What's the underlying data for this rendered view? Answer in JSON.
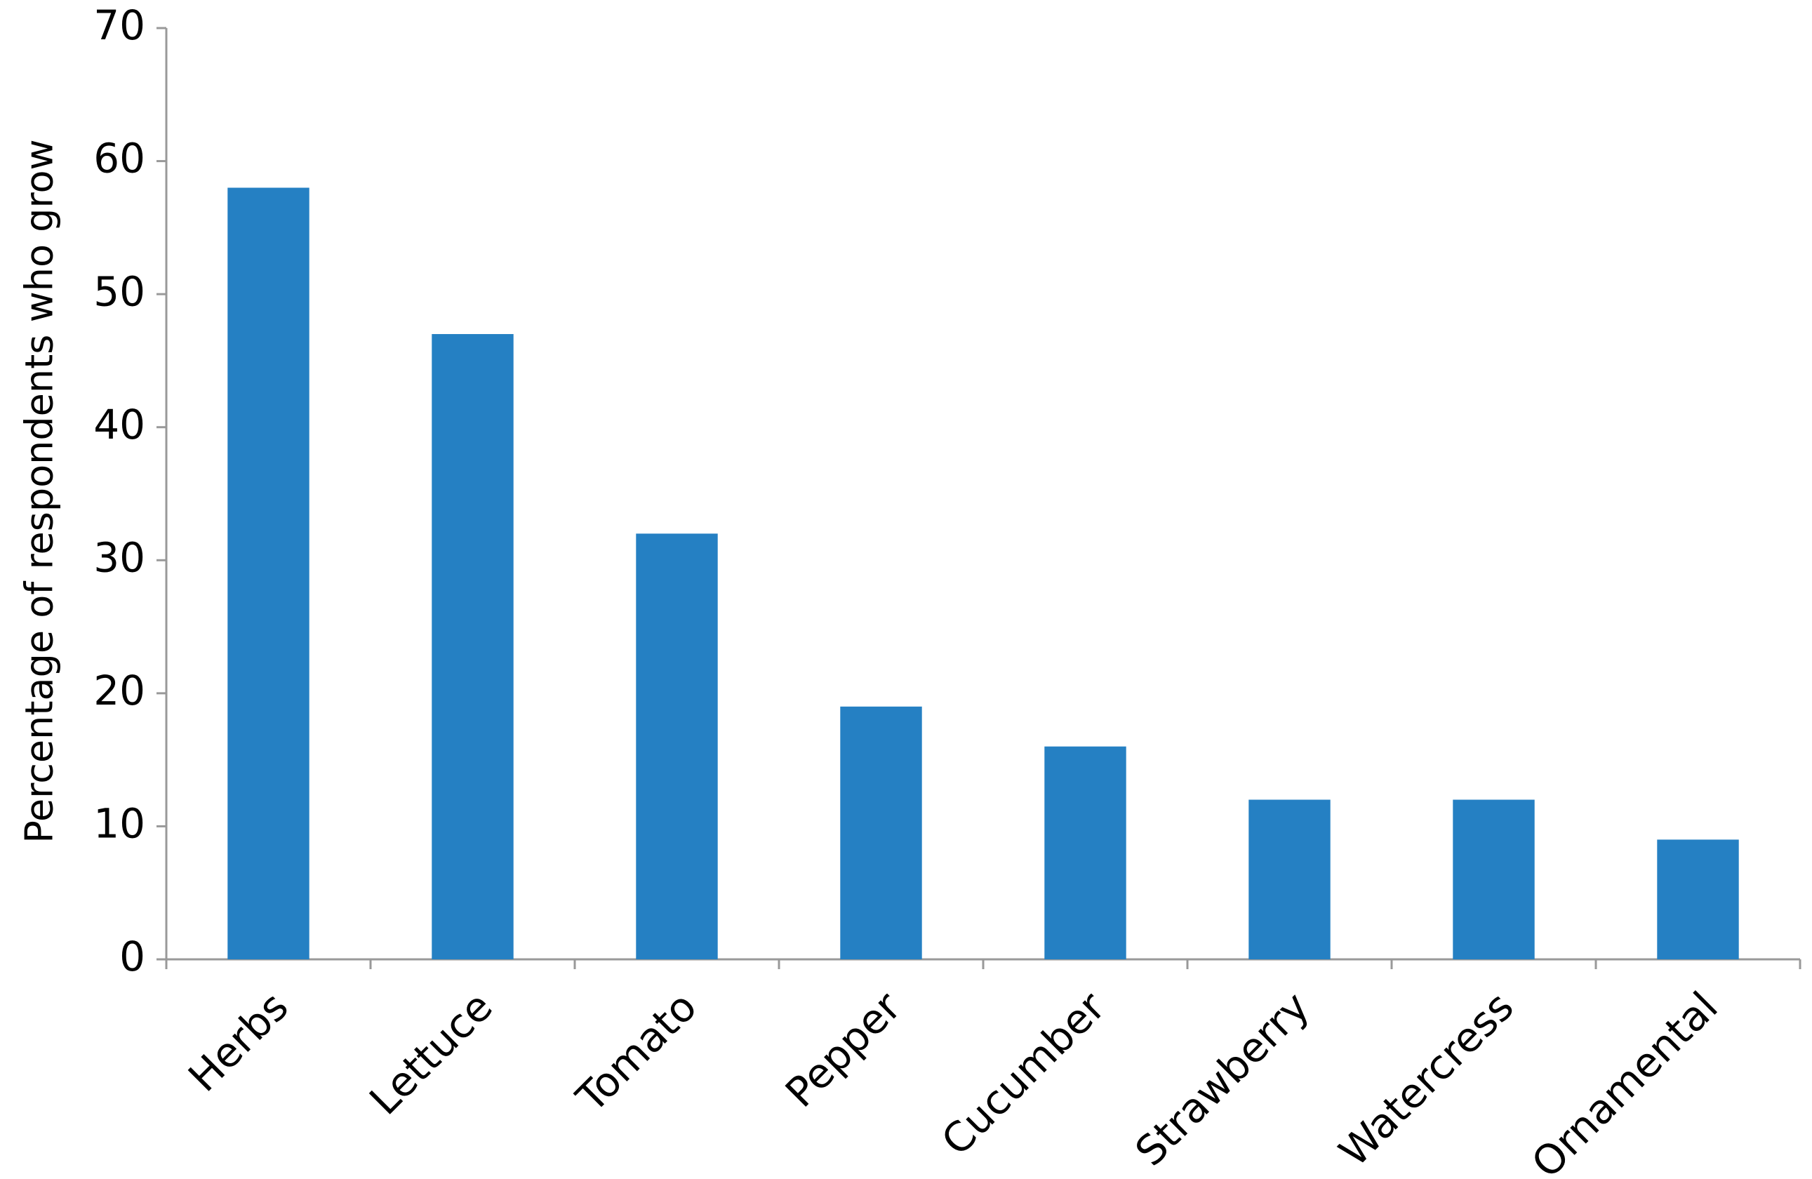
{
  "chart_data": {
    "type": "bar",
    "y_axis_label": "Percentage of respondents who grow",
    "categories": [
      "Herbs",
      "Lettuce",
      "Tomato",
      "Pepper",
      "Cucumber",
      "Strawberry",
      "Watercress",
      "Ornamental"
    ],
    "values": [
      58,
      47,
      32,
      19,
      16,
      12,
      12,
      9
    ],
    "color": "#2580c3",
    "ylim": [
      0,
      70
    ],
    "yticks": [
      0,
      10,
      20,
      30,
      40,
      50,
      60,
      70
    ],
    "grid": false
  }
}
